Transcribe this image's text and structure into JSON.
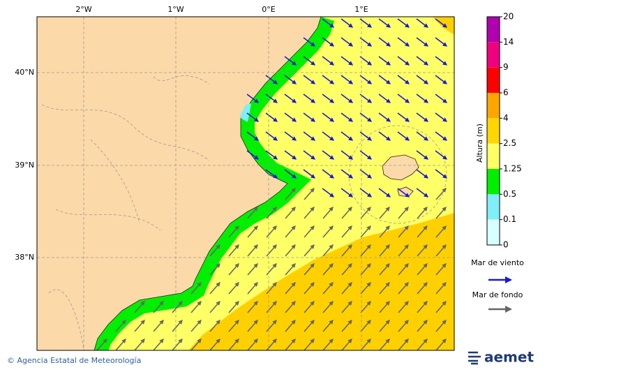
{
  "map": {
    "lon_labels": [
      "2°W",
      "1°W",
      "0°E",
      "1°E"
    ],
    "lat_labels": [
      "40°N",
      "39°N",
      "38°N"
    ]
  },
  "legend": {
    "title": "Altura (m)",
    "levels": [
      "20",
      "14",
      "9",
      "6",
      "4",
      "2.5",
      "1.25",
      "0.5",
      "0.1",
      "0"
    ],
    "colors": [
      "#b000b0",
      "#f0007f",
      "#ff0000",
      "#ffa500",
      "#ffd700",
      "#ffff66",
      "#00f000",
      "#80eef8",
      "#d8ffff"
    ],
    "wind_sea": "Mar de viento",
    "swell": "Mar de fondo"
  },
  "footer": {
    "credit": "© Agencia Estatal de Meteorología",
    "logo": "aemet"
  }
}
